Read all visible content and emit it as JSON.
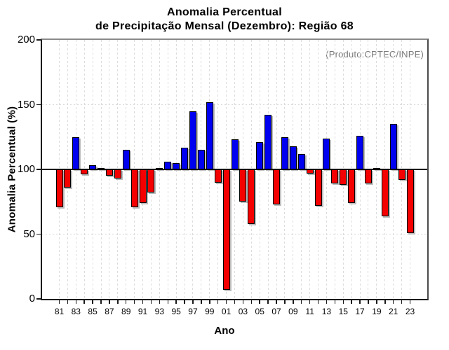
{
  "header": {
    "title_line1": "Anomalia Percentual",
    "title_line2": "de Precipitação Mensal (Dezembro): Região 68"
  },
  "annotation": "(Produto:CPTEC/INPE)",
  "chart_data": {
    "type": "bar",
    "title": "Anomalia Percentual de Precipitação Mensal (Dezembro): Região 68",
    "xlabel": "Ano",
    "ylabel": "Anomalia Percentual (%)",
    "ylim": [
      0,
      200
    ],
    "yticks": [
      0,
      50,
      100,
      150,
      200
    ],
    "baseline": 100,
    "legend": "none",
    "grid": {
      "vertical": "dashed per year",
      "horizontal": "dotted at 50 and 150",
      "baseline_100": "solid black"
    },
    "colors": {
      "above_baseline": "#0000f0",
      "below_baseline": "#f50000",
      "bar_outline": "#000000",
      "annotation_text": "#7a7a7a"
    },
    "categories": [
      "81",
      "82",
      "83",
      "84",
      "85",
      "86",
      "87",
      "88",
      "89",
      "90",
      "91",
      "92",
      "93",
      "94",
      "95",
      "96",
      "97",
      "98",
      "99",
      "00",
      "01",
      "02",
      "03",
      "04",
      "05",
      "06",
      "07",
      "08",
      "09",
      "10",
      "11",
      "12",
      "13",
      "14",
      "15",
      "16",
      "17",
      "18",
      "19",
      "20",
      "21",
      "22",
      "23"
    ],
    "values": [
      71,
      86,
      125,
      96,
      103,
      100,
      95,
      93,
      115,
      71,
      74,
      82,
      101,
      106,
      105,
      117,
      145,
      115,
      152,
      90,
      7,
      123,
      75,
      58,
      121,
      142,
      73,
      125,
      118,
      112,
      97,
      72,
      124,
      89,
      88,
      74,
      126,
      89,
      101,
      64,
      135,
      92,
      51
    ],
    "x_tick_label_every": 2
  }
}
